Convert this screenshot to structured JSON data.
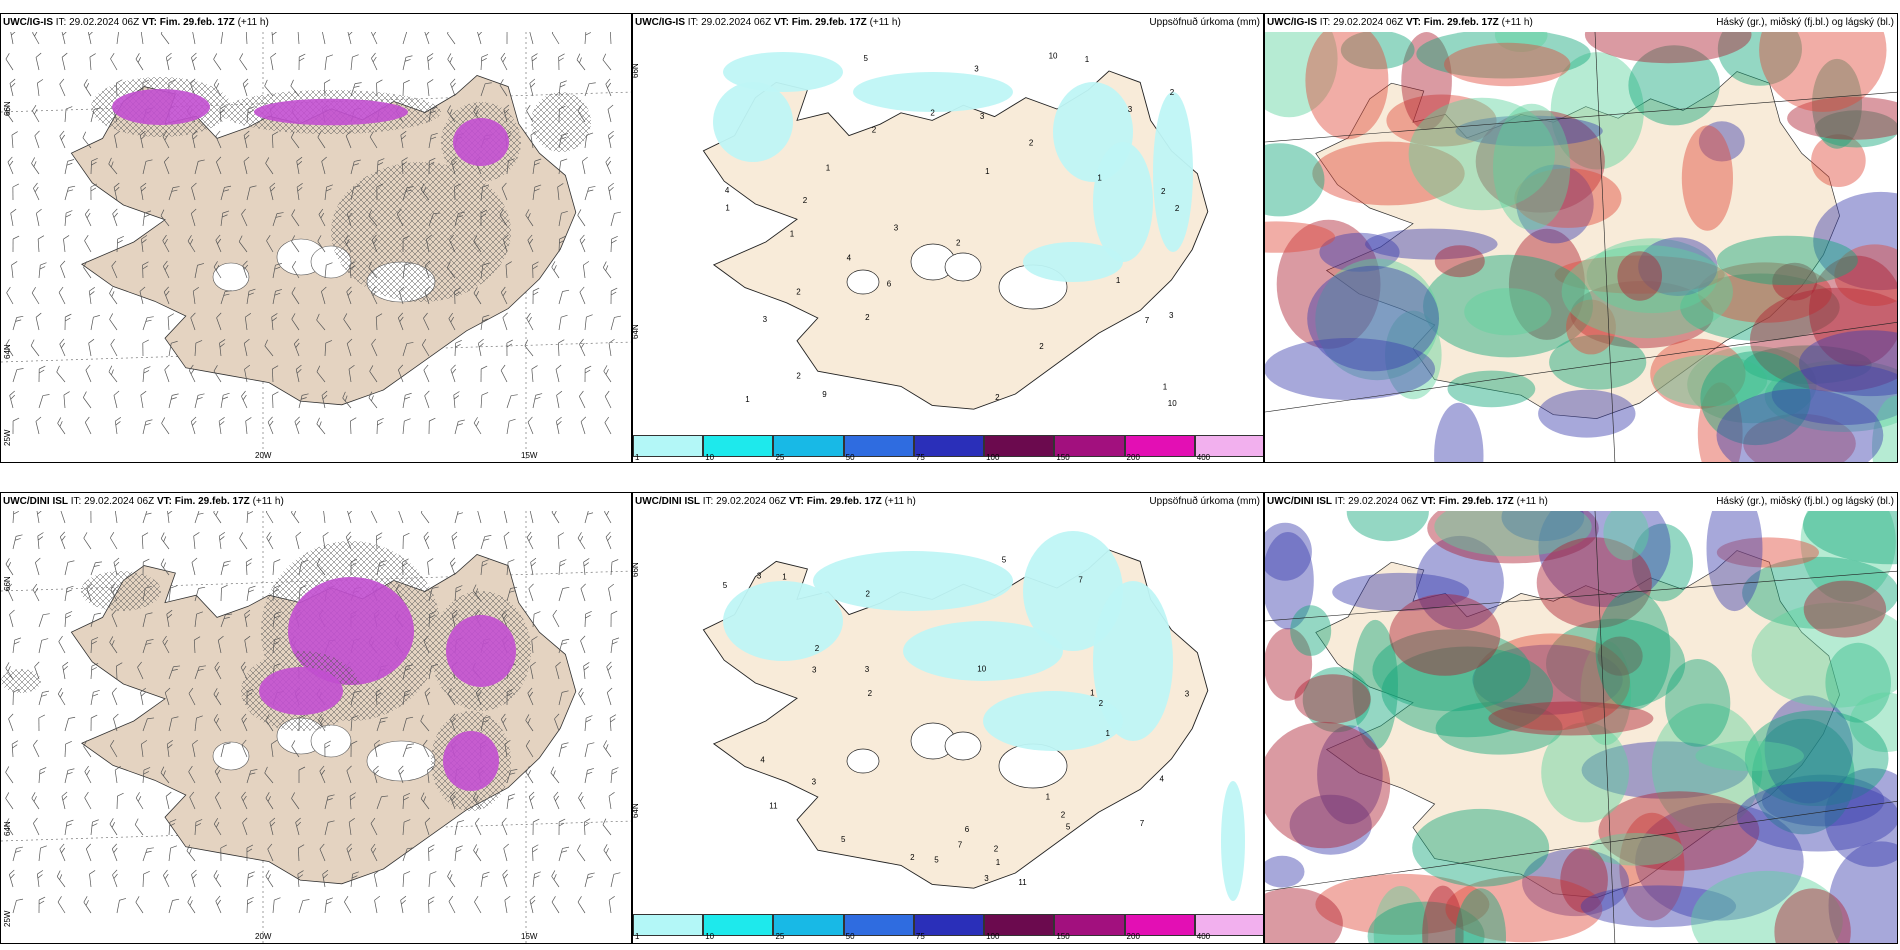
{
  "panels": [
    {
      "id": "tl",
      "model": "UWC/IG-IS",
      "it_label": "IT:",
      "it": "29.02.2024 06Z",
      "vt_label": "VT:",
      "vt": "Fim. 29.feb. 17Z",
      "lead": "(+11 h)",
      "right_title": "",
      "lat_labels": [
        "66N",
        "64N",
        "25W"
      ],
      "lon_labels": [
        "20W",
        "15W"
      ]
    },
    {
      "id": "tm",
      "model": "UWC/IG-IS",
      "it_label": "IT:",
      "it": "29.02.2024 06Z",
      "vt_label": "VT:",
      "vt": "Fim. 29.feb. 17Z",
      "lead": "(+11 h)",
      "right_title": "Uppsöfnuð úrkoma (mm)",
      "lat_labels": [
        "66N",
        "64N"
      ],
      "lon_labels": [],
      "values": [
        "2",
        "2",
        "2",
        "2",
        "3",
        "3",
        "6",
        "10",
        "7",
        "3",
        "1",
        "1",
        "1",
        "2",
        "3",
        "2",
        "4",
        "4",
        "5",
        "2",
        "1",
        "3",
        "2",
        "2",
        "1",
        "1",
        "1",
        "2",
        "2",
        "2",
        "9",
        "10",
        "1",
        "3",
        "2",
        "1"
      ]
    },
    {
      "id": "tr",
      "model": "UWC/IG-IS",
      "it_label": "IT:",
      "it": "29.02.2024 06Z",
      "vt_label": "VT:",
      "vt": "Fim. 29.feb. 17Z",
      "lead": "(+11 h)",
      "right_title": "Háský (gr.), miðský (fj.bl.) og lágský (bl.)",
      "lat_labels": [],
      "lon_labels": []
    },
    {
      "id": "bl",
      "model": "UWC/DINI ISL",
      "it_label": "IT:",
      "it": "29.02.2024 06Z",
      "vt_label": "VT:",
      "vt": "Fim. 29.feb. 17Z",
      "lead": "(+11 h)",
      "right_title": "",
      "lat_labels": [
        "66N",
        "64N",
        "25W"
      ],
      "lon_labels": [
        "20W",
        "15W"
      ]
    },
    {
      "id": "bm",
      "model": "UWC/DINI ISL",
      "it_label": "IT:",
      "it": "29.02.2024 06Z",
      "vt_label": "VT:",
      "vt": "Fim. 29.feb. 17Z",
      "lead": "(+11 h)",
      "right_title": "Uppsöfnuð úrkoma (mm)",
      "lat_labels": [
        "66N",
        "64N"
      ],
      "lon_labels": [],
      "values": [
        "2",
        "6",
        "10",
        "5",
        "3",
        "11",
        "7",
        "4",
        "1",
        "2",
        "3",
        "7",
        "5",
        "11",
        "7",
        "1",
        "2",
        "5",
        "4",
        "2",
        "1",
        "1",
        "3",
        "2",
        "2",
        "5",
        "5",
        "3",
        "2",
        "3",
        "3",
        "1"
      ]
    },
    {
      "id": "br",
      "model": "UWC/DINI ISL",
      "it_label": "IT:",
      "it": "29.02.2024 06Z",
      "vt_label": "VT:",
      "vt": "Fim. 29.feb. 17Z",
      "lead": "(+11 h)",
      "right_title": "Háský (gr.), miðský (fj.bl.) og lágský (bl.)",
      "lat_labels": [],
      "lon_labels": []
    }
  ],
  "colorbar": {
    "colors": [
      "#b3f7f7",
      "#1ee9ec",
      "#18b9e6",
      "#2f6ce0",
      "#2a2fb9",
      "#6b0a4e",
      "#a2107e",
      "#e30fb4",
      "#f2b0ee"
    ],
    "labels": [
      "1",
      "10",
      "25",
      "50",
      "75",
      "100",
      "150",
      "200",
      "400"
    ]
  },
  "colors": {
    "land": "#f8ebd9",
    "land_dark": "#e4d3c1",
    "precip": "#bff6f6",
    "snow": "#c24fd0",
    "wind": "#555555",
    "clouds_high": "#ad2030",
    "clouds_mid": "#3b3fae",
    "clouds_low": "#12a67a"
  }
}
